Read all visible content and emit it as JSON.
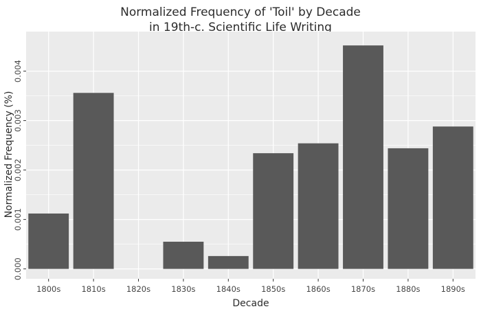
{
  "chart_data": {
    "type": "bar",
    "title": "Normalized Frequency of 'Toil' by Decade",
    "subtitle": "in 19th-c. Scientific Life Writing",
    "xlabel": "Decade",
    "ylabel": "Normalized Frequency (%)",
    "categories": [
      "1800s",
      "1810s",
      "1820s",
      "1830s",
      "1840s",
      "1850s",
      "1860s",
      "1870s",
      "1880s",
      "1890s"
    ],
    "values": [
      0.00112,
      0.00356,
      0.0,
      0.00055,
      0.00026,
      0.00234,
      0.00254,
      0.00452,
      0.00244,
      0.00288
    ],
    "ylim": [
      -0.0002,
      0.0048
    ],
    "yticks": [
      0,
      0.001,
      0.002,
      0.003,
      0.004
    ],
    "ytick_labels": [
      "0.000",
      "0.001",
      "0.002",
      "0.003",
      "0.004"
    ],
    "grid": true,
    "legend": "none",
    "colors": {
      "bar": "#595959",
      "panel": "#ebebeb",
      "grid": "#ffffff"
    }
  }
}
